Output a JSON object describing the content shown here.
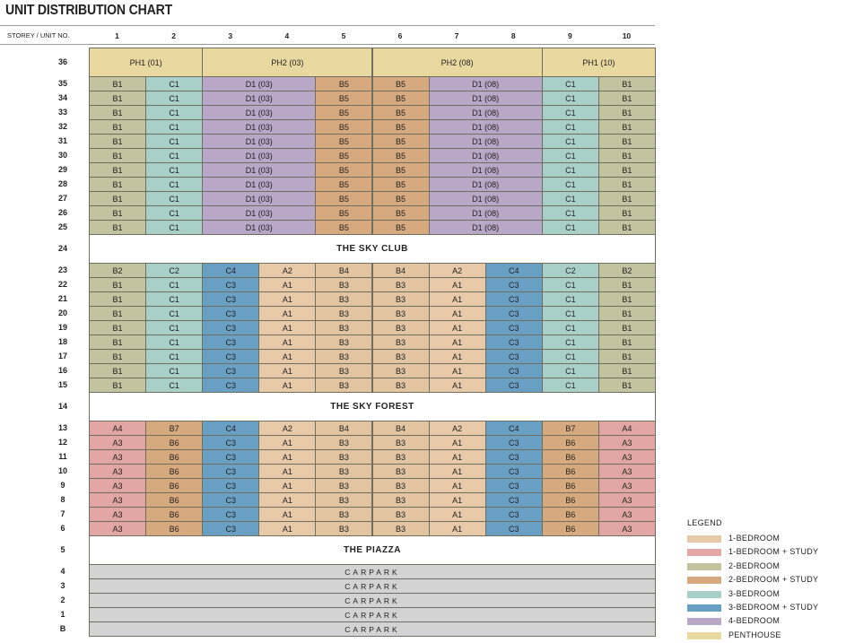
{
  "header": {
    "title": "UNIT DISTRIBUTION CHART",
    "storey_label": "STOREY / UNIT NO.",
    "unit_numbers": [
      "1",
      "2",
      "3",
      "4",
      "5",
      "6",
      "7",
      "8",
      "9",
      "10"
    ]
  },
  "rows": [
    {
      "storey": "36",
      "cells": [
        "PH1 (01)",
        "PH2 (03)",
        "PH2 (08)",
        "PH1 (10)"
      ],
      "colors": [
        "#e9d8a0",
        "#e9d8a0",
        "#e9d8a0",
        "#e9d8a0"
      ]
    },
    {
      "storey": "35",
      "cells": [
        "B1",
        "C1",
        "D1 (03)",
        "B5",
        "B5",
        "D1 (08)",
        "C1",
        "B1"
      ],
      "colors": [
        "#c4c3a0",
        "#a9cfc9",
        "#b8a7c6",
        "#d6a97e",
        "#d6a97e",
        "#b8a7c6",
        "#a9cfc9",
        "#c4c3a0"
      ]
    },
    {
      "storey": "34",
      "cells": [
        "B1",
        "C1",
        "D1 (03)",
        "B5",
        "B5",
        "D1 (08)",
        "C1",
        "B1"
      ],
      "colors": [
        "#c4c3a0",
        "#a9cfc9",
        "#b8a7c6",
        "#d6a97e",
        "#d6a97e",
        "#b8a7c6",
        "#a9cfc9",
        "#c4c3a0"
      ]
    },
    {
      "storey": "33",
      "cells": [
        "B1",
        "C1",
        "D1 (03)",
        "B5",
        "B5",
        "D1 (08)",
        "C1",
        "B1"
      ],
      "colors": [
        "#c4c3a0",
        "#a9cfc9",
        "#b8a7c6",
        "#d6a97e",
        "#d6a97e",
        "#b8a7c6",
        "#a9cfc9",
        "#c4c3a0"
      ]
    },
    {
      "storey": "32",
      "cells": [
        "B1",
        "C1",
        "D1 (03)",
        "B5",
        "B5",
        "D1 (08)",
        "C1",
        "B1"
      ],
      "colors": [
        "#c4c3a0",
        "#a9cfc9",
        "#b8a7c6",
        "#d6a97e",
        "#d6a97e",
        "#b8a7c6",
        "#a9cfc9",
        "#c4c3a0"
      ]
    },
    {
      "storey": "31",
      "cells": [
        "B1",
        "C1",
        "D1 (03)",
        "B5",
        "B5",
        "D1 (08)",
        "C1",
        "B1"
      ],
      "colors": [
        "#c4c3a0",
        "#a9cfc9",
        "#b8a7c6",
        "#d6a97e",
        "#d6a97e",
        "#b8a7c6",
        "#a9cfc9",
        "#c4c3a0"
      ]
    },
    {
      "storey": "30",
      "cells": [
        "B1",
        "C1",
        "D1 (03)",
        "B5",
        "B5",
        "D1 (08)",
        "C1",
        "B1"
      ],
      "colors": [
        "#c4c3a0",
        "#a9cfc9",
        "#b8a7c6",
        "#d6a97e",
        "#d6a97e",
        "#b8a7c6",
        "#a9cfc9",
        "#c4c3a0"
      ]
    },
    {
      "storey": "29",
      "cells": [
        "B1",
        "C1",
        "D1 (03)",
        "B5",
        "B5",
        "D1 (08)",
        "C1",
        "B1"
      ],
      "colors": [
        "#c4c3a0",
        "#a9cfc9",
        "#b8a7c6",
        "#d6a97e",
        "#d6a97e",
        "#b8a7c6",
        "#a9cfc9",
        "#c4c3a0"
      ]
    },
    {
      "storey": "28",
      "cells": [
        "B1",
        "C1",
        "D1 (03)",
        "B5",
        "B5",
        "D1 (08)",
        "C1",
        "B1"
      ],
      "colors": [
        "#c4c3a0",
        "#a9cfc9",
        "#b8a7c6",
        "#d6a97e",
        "#d6a97e",
        "#b8a7c6",
        "#a9cfc9",
        "#c4c3a0"
      ]
    },
    {
      "storey": "27",
      "cells": [
        "B1",
        "C1",
        "D1 (03)",
        "B5",
        "B5",
        "D1 (08)",
        "C1",
        "B1"
      ],
      "colors": [
        "#c4c3a0",
        "#a9cfc9",
        "#b8a7c6",
        "#d6a97e",
        "#d6a97e",
        "#b8a7c6",
        "#a9cfc9",
        "#c4c3a0"
      ]
    },
    {
      "storey": "26",
      "cells": [
        "B1",
        "C1",
        "D1 (03)",
        "B5",
        "B5",
        "D1 (08)",
        "C1",
        "B1"
      ],
      "colors": [
        "#c4c3a0",
        "#a9cfc9",
        "#b8a7c6",
        "#d6a97e",
        "#d6a97e",
        "#b8a7c6",
        "#a9cfc9",
        "#c4c3a0"
      ]
    },
    {
      "storey": "25",
      "cells": [
        "B1",
        "C1",
        "D1 (03)",
        "B5",
        "B5",
        "D1 (08)",
        "C1",
        "B1"
      ],
      "colors": [
        "#c4c3a0",
        "#a9cfc9",
        "#b8a7c6",
        "#d6a97e",
        "#d6a97e",
        "#b8a7c6",
        "#a9cfc9",
        "#c4c3a0"
      ]
    },
    {
      "storey": "24",
      "cells": [
        "THE SKY CLUB"
      ],
      "colors": [
        "#ffffff"
      ]
    },
    {
      "storey": "23",
      "cells": [
        "B2",
        "C2",
        "C4",
        "A2",
        "B4",
        "B4",
        "A2",
        "C4",
        "C2",
        "B2"
      ],
      "colors": [
        "#c4c3a0",
        "#a9cfc9",
        "#6a9fc4",
        "#e8c9a8",
        "#e2c4a0",
        "#e2c4a0",
        "#e8c9a8",
        "#6a9fc4",
        "#a9cfc9",
        "#c4c3a0"
      ]
    },
    {
      "storey": "22",
      "cells": [
        "B1",
        "C1",
        "C3",
        "A1",
        "B3",
        "B3",
        "A1",
        "C3",
        "C1",
        "B1"
      ],
      "colors": [
        "#c4c3a0",
        "#a9cfc9",
        "#6a9fc4",
        "#e8c9a8",
        "#e2c4a0",
        "#e2c4a0",
        "#e8c9a8",
        "#6a9fc4",
        "#a9cfc9",
        "#c4c3a0"
      ]
    },
    {
      "storey": "21",
      "cells": [
        "B1",
        "C1",
        "C3",
        "A1",
        "B3",
        "B3",
        "A1",
        "C3",
        "C1",
        "B1"
      ],
      "colors": [
        "#c4c3a0",
        "#a9cfc9",
        "#6a9fc4",
        "#e8c9a8",
        "#e2c4a0",
        "#e2c4a0",
        "#e8c9a8",
        "#6a9fc4",
        "#a9cfc9",
        "#c4c3a0"
      ]
    },
    {
      "storey": "20",
      "cells": [
        "B1",
        "C1",
        "C3",
        "A1",
        "B3",
        "B3",
        "A1",
        "C3",
        "C1",
        "B1"
      ],
      "colors": [
        "#c4c3a0",
        "#a9cfc9",
        "#6a9fc4",
        "#e8c9a8",
        "#e2c4a0",
        "#e2c4a0",
        "#e8c9a8",
        "#6a9fc4",
        "#a9cfc9",
        "#c4c3a0"
      ]
    },
    {
      "storey": "19",
      "cells": [
        "B1",
        "C1",
        "C3",
        "A1",
        "B3",
        "B3",
        "A1",
        "C3",
        "C1",
        "B1"
      ],
      "colors": [
        "#c4c3a0",
        "#a9cfc9",
        "#6a9fc4",
        "#e8c9a8",
        "#e2c4a0",
        "#e2c4a0",
        "#e8c9a8",
        "#6a9fc4",
        "#a9cfc9",
        "#c4c3a0"
      ]
    },
    {
      "storey": "18",
      "cells": [
        "B1",
        "C1",
        "C3",
        "A1",
        "B3",
        "B3",
        "A1",
        "C3",
        "C1",
        "B1"
      ],
      "colors": [
        "#c4c3a0",
        "#a9cfc9",
        "#6a9fc4",
        "#e8c9a8",
        "#e2c4a0",
        "#e2c4a0",
        "#e8c9a8",
        "#6a9fc4",
        "#a9cfc9",
        "#c4c3a0"
      ]
    },
    {
      "storey": "17",
      "cells": [
        "B1",
        "C1",
        "C3",
        "A1",
        "B3",
        "B3",
        "A1",
        "C3",
        "C1",
        "B1"
      ],
      "colors": [
        "#c4c3a0",
        "#a9cfc9",
        "#6a9fc4",
        "#e8c9a8",
        "#e2c4a0",
        "#e2c4a0",
        "#e8c9a8",
        "#6a9fc4",
        "#a9cfc9",
        "#c4c3a0"
      ]
    },
    {
      "storey": "16",
      "cells": [
        "B1",
        "C1",
        "C3",
        "A1",
        "B3",
        "B3",
        "A1",
        "C3",
        "C1",
        "B1"
      ],
      "colors": [
        "#c4c3a0",
        "#a9cfc9",
        "#6a9fc4",
        "#e8c9a8",
        "#e2c4a0",
        "#e2c4a0",
        "#e8c9a8",
        "#6a9fc4",
        "#a9cfc9",
        "#c4c3a0"
      ]
    },
    {
      "storey": "15",
      "cells": [
        "B1",
        "C1",
        "C3",
        "A1",
        "B3",
        "B3",
        "A1",
        "C3",
        "C1",
        "B1"
      ],
      "colors": [
        "#c4c3a0",
        "#a9cfc9",
        "#6a9fc4",
        "#e8c9a8",
        "#e2c4a0",
        "#e2c4a0",
        "#e8c9a8",
        "#6a9fc4",
        "#a9cfc9",
        "#c4c3a0"
      ]
    },
    {
      "storey": "14",
      "cells": [
        "THE SKY FOREST"
      ],
      "colors": [
        "#ffffff"
      ]
    },
    {
      "storey": "13",
      "cells": [
        "A4",
        "B7",
        "C4",
        "A2",
        "B4",
        "B4",
        "A2",
        "C4",
        "B7",
        "A4"
      ],
      "colors": [
        "#e2a6a4",
        "#d6a97e",
        "#6a9fc4",
        "#e8c9a8",
        "#e2c4a0",
        "#e2c4a0",
        "#e8c9a8",
        "#6a9fc4",
        "#d6a97e",
        "#e2a6a4"
      ]
    },
    {
      "storey": "12",
      "cells": [
        "A3",
        "B6",
        "C3",
        "A1",
        "B3",
        "B3",
        "A1",
        "C3",
        "B6",
        "A3"
      ],
      "colors": [
        "#e2a6a4",
        "#d6a97e",
        "#6a9fc4",
        "#e8c9a8",
        "#e2c4a0",
        "#e2c4a0",
        "#e8c9a8",
        "#6a9fc4",
        "#d6a97e",
        "#e2a6a4"
      ]
    },
    {
      "storey": "11",
      "cells": [
        "A3",
        "B6",
        "C3",
        "A1",
        "B3",
        "B3",
        "A1",
        "C3",
        "B6",
        "A3"
      ],
      "colors": [
        "#e2a6a4",
        "#d6a97e",
        "#6a9fc4",
        "#e8c9a8",
        "#e2c4a0",
        "#e2c4a0",
        "#e8c9a8",
        "#6a9fc4",
        "#d6a97e",
        "#e2a6a4"
      ]
    },
    {
      "storey": "10",
      "cells": [
        "A3",
        "B6",
        "C3",
        "A1",
        "B3",
        "B3",
        "A1",
        "C3",
        "B6",
        "A3"
      ],
      "colors": [
        "#e2a6a4",
        "#d6a97e",
        "#6a9fc4",
        "#e8c9a8",
        "#e2c4a0",
        "#e2c4a0",
        "#e8c9a8",
        "#6a9fc4",
        "#d6a97e",
        "#e2a6a4"
      ]
    },
    {
      "storey": "9",
      "cells": [
        "A3",
        "B6",
        "C3",
        "A1",
        "B3",
        "B3",
        "A1",
        "C3",
        "B6",
        "A3"
      ],
      "colors": [
        "#e2a6a4",
        "#d6a97e",
        "#6a9fc4",
        "#e8c9a8",
        "#e2c4a0",
        "#e2c4a0",
        "#e8c9a8",
        "#6a9fc4",
        "#d6a97e",
        "#e2a6a4"
      ]
    },
    {
      "storey": "8",
      "cells": [
        "A3",
        "B6",
        "C3",
        "A1",
        "B3",
        "B3",
        "A1",
        "C3",
        "B6",
        "A3"
      ],
      "colors": [
        "#e2a6a4",
        "#d6a97e",
        "#6a9fc4",
        "#e8c9a8",
        "#e2c4a0",
        "#e2c4a0",
        "#e8c9a8",
        "#6a9fc4",
        "#d6a97e",
        "#e2a6a4"
      ]
    },
    {
      "storey": "7",
      "cells": [
        "A3",
        "B6",
        "C3",
        "A1",
        "B3",
        "B3",
        "A1",
        "C3",
        "B6",
        "A3"
      ],
      "colors": [
        "#e2a6a4",
        "#d6a97e",
        "#6a9fc4",
        "#e8c9a8",
        "#e2c4a0",
        "#e2c4a0",
        "#e8c9a8",
        "#6a9fc4",
        "#d6a97e",
        "#e2a6a4"
      ]
    },
    {
      "storey": "6",
      "cells": [
        "A3",
        "B6",
        "C3",
        "A1",
        "B3",
        "B3",
        "A1",
        "C3",
        "B6",
        "A3"
      ],
      "colors": [
        "#e2a6a4",
        "#d6a97e",
        "#6a9fc4",
        "#e8c9a8",
        "#e2c4a0",
        "#e2c4a0",
        "#e8c9a8",
        "#6a9fc4",
        "#d6a97e",
        "#e2a6a4"
      ]
    },
    {
      "storey": "5",
      "cells": [
        "THE PIAZZA"
      ],
      "colors": [
        "#ffffff"
      ]
    },
    {
      "storey": "4",
      "cells": [
        "CARPARK"
      ],
      "colors": [
        "#d3d3d3"
      ]
    },
    {
      "storey": "3",
      "cells": [
        "CARPARK"
      ],
      "colors": [
        "#d3d3d3"
      ]
    },
    {
      "storey": "2",
      "cells": [
        "CARPARK"
      ],
      "colors": [
        "#d3d3d3"
      ]
    },
    {
      "storey": "1",
      "cells": [
        "CARPARK"
      ],
      "colors": [
        "#d3d3d3"
      ]
    },
    {
      "storey": "B",
      "cells": [
        "CARPARK"
      ],
      "colors": [
        "#d3d3d3"
      ]
    }
  ],
  "legend": {
    "title": "LEGEND",
    "items": [
      {
        "label": "1-BEDROOM",
        "color": "#e8c9a8"
      },
      {
        "label": "1-BEDROOM + STUDY",
        "color": "#e2a6a4"
      },
      {
        "label": "2-BEDROOM",
        "color": "#c4c3a0"
      },
      {
        "label": "2-BEDROOM + STUDY",
        "color": "#d6a97e"
      },
      {
        "label": "3-BEDROOM",
        "color": "#a9cfc9"
      },
      {
        "label": "3-BEDROOM + STUDY",
        "color": "#6a9fc4"
      },
      {
        "label": "4-BEDROOM",
        "color": "#b8a7c6"
      },
      {
        "label": "PENTHOUSE",
        "color": "#e9d8a0"
      }
    ]
  }
}
